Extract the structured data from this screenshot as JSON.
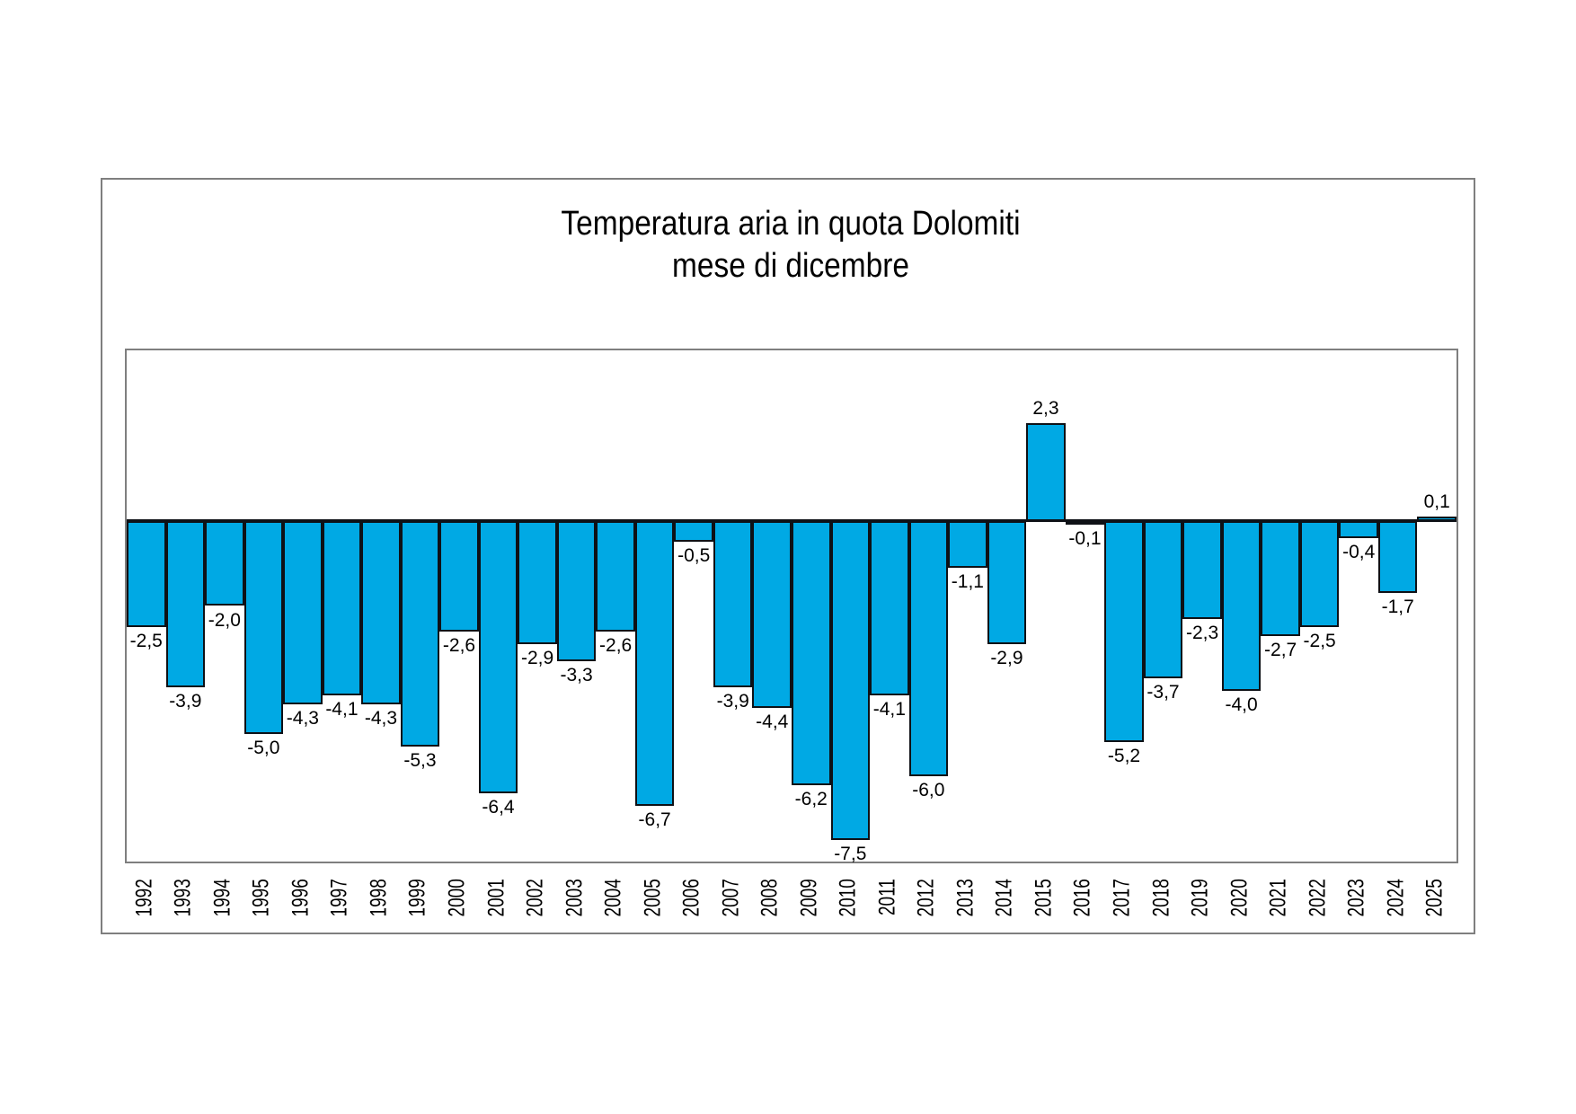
{
  "chart_data": {
    "type": "bar",
    "title": "Temperatura aria in quota Dolomiti",
    "subtitle": "mese di dicembre",
    "categories": [
      "1992",
      "1993",
      "1994",
      "1995",
      "1996",
      "1997",
      "1998",
      "1999",
      "2000",
      "2001",
      "2002",
      "2003",
      "2004",
      "2005",
      "2006",
      "2007",
      "2008",
      "2009",
      "2010",
      "2011",
      "2012",
      "2013",
      "2014",
      "2015",
      "2016",
      "2017",
      "2018",
      "2019",
      "2020",
      "2021",
      "2022",
      "2023",
      "2024",
      "2025"
    ],
    "values": [
      -2.5,
      -3.9,
      -2.0,
      -5.0,
      -4.3,
      -4.1,
      -4.3,
      -5.3,
      -2.6,
      -6.4,
      -2.9,
      -3.3,
      -2.6,
      -6.7,
      -0.5,
      -3.9,
      -4.4,
      -6.2,
      -7.5,
      -4.1,
      -6.0,
      -1.1,
      -2.9,
      2.3,
      -0.1,
      -5.2,
      -3.7,
      -2.3,
      -4.0,
      -2.7,
      -2.5,
      -0.4,
      -1.7,
      0.1
    ],
    "value_labels": [
      "-2,5",
      "-3,9",
      "-2,0",
      "-5,0",
      "-4,3",
      "-4,1",
      "-4,3",
      "-5,3",
      "-2,6",
      "-6,4",
      "-2,9",
      "-3,3",
      "-2,6",
      "-6,7",
      "-0,5",
      "-3,9",
      "-4,4",
      "-6,2",
      "-7,5",
      "-4,1",
      "-6,0",
      "-1,1",
      "-2,9",
      "2,3",
      "-0,1",
      "-5,2",
      "-3,7",
      "-2,3",
      "-4,0",
      "-2,7",
      "-2,5",
      "-0,4",
      "-1,7",
      "0,1"
    ],
    "decimal_separator": ",",
    "ylim": [
      -8,
      4
    ],
    "xlabel": "",
    "ylabel": "",
    "gridlines": false,
    "legend_position": "none",
    "bar_color": "#00a9e4",
    "bar_border_color": "#0e1116",
    "frame_border_color": "#7f7f7f",
    "text_color": "#000000"
  }
}
